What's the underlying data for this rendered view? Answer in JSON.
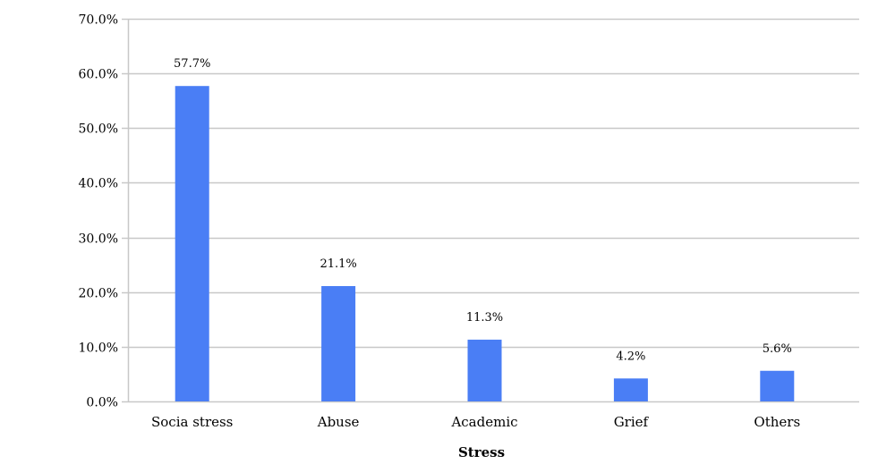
{
  "chart_data": {
    "type": "bar",
    "categories": [
      "Socia stress",
      "Abuse",
      "Academic",
      "Grief",
      "Others"
    ],
    "values": [
      57.7,
      21.1,
      11.3,
      4.2,
      5.6
    ],
    "data_labels": [
      "57.7%",
      "21.1%",
      "11.3%",
      "4.2%",
      "5.6%"
    ],
    "xlabel": "Stress",
    "ylabel": "",
    "ylim": [
      0,
      70
    ],
    "yticks": [
      0,
      10,
      20,
      30,
      40,
      50,
      60,
      70
    ],
    "ytick_labels": [
      "0.0%",
      "10.0%",
      "20.0%",
      "30.0%",
      "40.0%",
      "50.0%",
      "60.0%",
      "70.0%"
    ],
    "grid": true,
    "bar_color": "#4a7ef5",
    "grid_color": "#c8c8c8"
  }
}
